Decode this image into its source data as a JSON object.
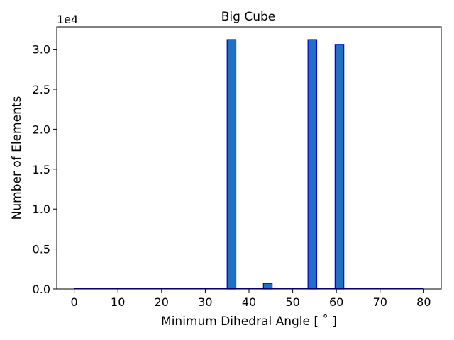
{
  "chart_data": {
    "type": "bar",
    "title": "Big Cube",
    "xlabel": "Minimum Dihedral Angle [$^\\circ$]",
    "xlabel_display": "Minimum Dihedral Angle [ ˚ ]",
    "ylabel": "Number of Elements",
    "y_offset_label": "1e4",
    "xlim": [
      -4,
      84
    ],
    "ylim": [
      0,
      32800
    ],
    "x_ticks": [
      0,
      10,
      20,
      30,
      40,
      50,
      60,
      70,
      80
    ],
    "x_tick_labels": [
      "0",
      "10",
      "20",
      "30",
      "40",
      "50",
      "60",
      "70",
      "80"
    ],
    "y_ticks": [
      0,
      5000,
      10000,
      15000,
      20000,
      25000,
      30000
    ],
    "y_tick_labels": [
      "0.0",
      "0.5",
      "1.0",
      "1.5",
      "2.0",
      "2.5",
      "3.0"
    ],
    "bin_width": 2,
    "bars": [
      {
        "x_start": 35,
        "x_end": 37,
        "value": 31200
      },
      {
        "x_start": 43.3,
        "x_end": 45.3,
        "value": 700
      },
      {
        "x_start": 53.5,
        "x_end": 55.5,
        "value": 31200
      },
      {
        "x_start": 59.7,
        "x_end": 61.7,
        "value": 30600
      }
    ],
    "bar_fill": "#2171c3",
    "bar_edge": "#0000cc",
    "grid": false,
    "legend": "none"
  }
}
